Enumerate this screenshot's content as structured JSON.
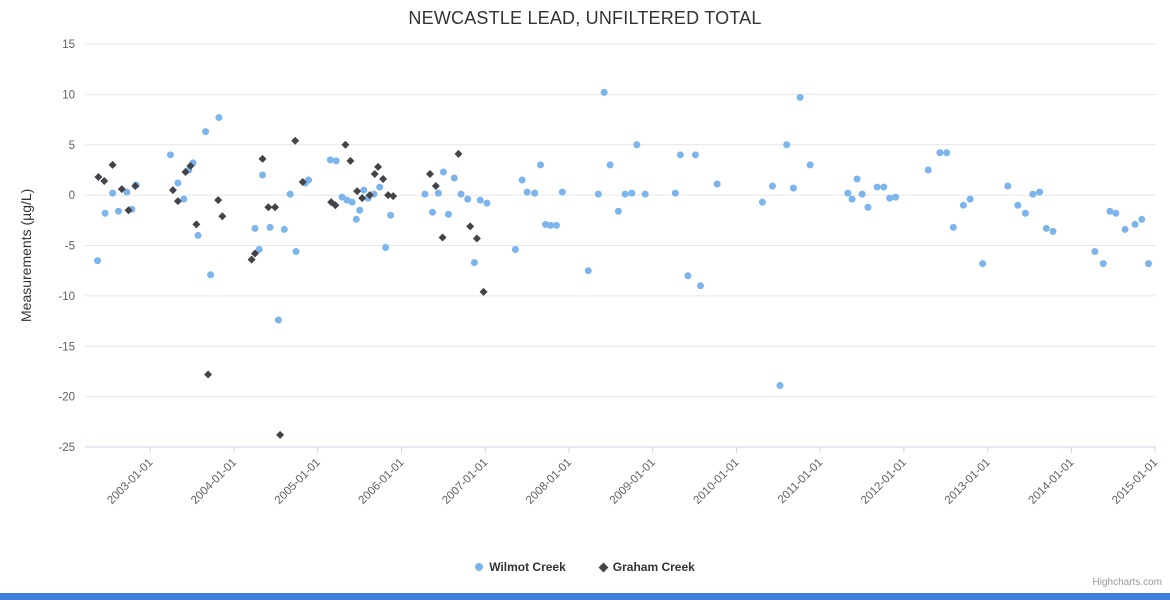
{
  "page": {
    "credits": "Highcharts.com"
  },
  "chart_data": {
    "type": "scatter",
    "title": "NEWCASTLE LEAD, UNFILTERED TOTAL",
    "xlabel": "",
    "ylabel": "Measurements (µg/L)",
    "xlim": [
      2002.22,
      2015.01
    ],
    "ylim": [
      -25,
      15
    ],
    "yticks": [
      15,
      10,
      5,
      0,
      -5,
      -10,
      -15,
      -20,
      -25
    ],
    "xticks": [
      {
        "v": 2003,
        "label": "2003-01-01"
      },
      {
        "v": 2004,
        "label": "2004-01-01"
      },
      {
        "v": 2005,
        "label": "2005-01-01"
      },
      {
        "v": 2006,
        "label": "2006-01-01"
      },
      {
        "v": 2007,
        "label": "2007-01-01"
      },
      {
        "v": 2008,
        "label": "2008-01-01"
      },
      {
        "v": 2009,
        "label": "2009-01-01"
      },
      {
        "v": 2010,
        "label": "2010-01-01"
      },
      {
        "v": 2011,
        "label": "2011-01-01"
      },
      {
        "v": 2012,
        "label": "2012-01-01"
      },
      {
        "v": 2013,
        "label": "2013-01-01"
      },
      {
        "v": 2014,
        "label": "2014-01-01"
      },
      {
        "v": 2015,
        "label": "2015-01-01"
      }
    ],
    "grid": "horizontal",
    "legend_position": "bottom-center",
    "series": [
      {
        "name": "Wilmot Creek",
        "marker": "circle",
        "color": "#7cb5ec",
        "data": [
          [
            2002.37,
            -6.5
          ],
          [
            2002.46,
            -1.8
          ],
          [
            2002.55,
            0.2
          ],
          [
            2002.62,
            -1.6
          ],
          [
            2002.72,
            0.3
          ],
          [
            2002.78,
            -1.4
          ],
          [
            2002.83,
            1.0
          ],
          [
            2003.24,
            4.0
          ],
          [
            2003.33,
            1.2
          ],
          [
            2003.4,
            -0.4
          ],
          [
            2003.46,
            2.5
          ],
          [
            2003.51,
            3.2
          ],
          [
            2003.57,
            -4.0
          ],
          [
            2003.66,
            6.3
          ],
          [
            2003.72,
            -7.9
          ],
          [
            2003.82,
            7.7
          ],
          [
            2004.25,
            -3.3
          ],
          [
            2004.3,
            -5.4
          ],
          [
            2004.34,
            2.0
          ],
          [
            2004.43,
            -3.2
          ],
          [
            2004.53,
            -12.4
          ],
          [
            2004.6,
            -3.4
          ],
          [
            2004.67,
            0.1
          ],
          [
            2004.74,
            -5.6
          ],
          [
            2004.85,
            1.2
          ],
          [
            2004.89,
            1.5
          ],
          [
            2005.15,
            3.5
          ],
          [
            2005.22,
            3.4
          ],
          [
            2005.29,
            -0.2
          ],
          [
            2005.35,
            -0.5
          ],
          [
            2005.41,
            -0.7
          ],
          [
            2005.46,
            -2.4
          ],
          [
            2005.5,
            -1.5
          ],
          [
            2005.55,
            0.5
          ],
          [
            2005.6,
            -0.3
          ],
          [
            2005.67,
            0.1
          ],
          [
            2005.74,
            0.8
          ],
          [
            2005.81,
            -5.2
          ],
          [
            2005.87,
            -2.0
          ],
          [
            2006.28,
            0.1
          ],
          [
            2006.37,
            -1.7
          ],
          [
            2006.44,
            0.2
          ],
          [
            2006.5,
            2.3
          ],
          [
            2006.56,
            -1.9
          ],
          [
            2006.63,
            1.7
          ],
          [
            2006.71,
            0.1
          ],
          [
            2006.79,
            -0.4
          ],
          [
            2006.87,
            -6.7
          ],
          [
            2006.94,
            -0.5
          ],
          [
            2007.02,
            -0.8
          ],
          [
            2007.36,
            -5.4
          ],
          [
            2007.44,
            1.5
          ],
          [
            2007.5,
            0.3
          ],
          [
            2007.59,
            0.2
          ],
          [
            2007.66,
            3.0
          ],
          [
            2007.72,
            -2.9
          ],
          [
            2007.78,
            -3.0
          ],
          [
            2007.85,
            -3.0
          ],
          [
            2007.92,
            0.3
          ],
          [
            2008.23,
            -7.5
          ],
          [
            2008.35,
            0.1
          ],
          [
            2008.42,
            10.2
          ],
          [
            2008.49,
            3.0
          ],
          [
            2008.59,
            -1.6
          ],
          [
            2008.67,
            0.1
          ],
          [
            2008.75,
            0.2
          ],
          [
            2008.81,
            5.0
          ],
          [
            2008.91,
            0.1
          ],
          [
            2009.27,
            0.2
          ],
          [
            2009.33,
            4.0
          ],
          [
            2009.42,
            -8.0
          ],
          [
            2009.51,
            4.0
          ],
          [
            2009.57,
            -9.0
          ],
          [
            2009.77,
            1.1
          ],
          [
            2010.31,
            -0.7
          ],
          [
            2010.43,
            0.9
          ],
          [
            2010.52,
            -18.9
          ],
          [
            2010.6,
            5.0
          ],
          [
            2010.68,
            0.7
          ],
          [
            2010.76,
            9.7
          ],
          [
            2010.88,
            3.0
          ],
          [
            2011.33,
            0.2
          ],
          [
            2011.38,
            -0.4
          ],
          [
            2011.44,
            1.6
          ],
          [
            2011.5,
            0.1
          ],
          [
            2011.57,
            -1.2
          ],
          [
            2011.68,
            0.8
          ],
          [
            2011.76,
            0.8
          ],
          [
            2011.83,
            -0.3
          ],
          [
            2011.9,
            -0.2
          ],
          [
            2012.29,
            2.5
          ],
          [
            2012.43,
            4.2
          ],
          [
            2012.51,
            4.2
          ],
          [
            2012.59,
            -3.2
          ],
          [
            2012.71,
            -1.0
          ],
          [
            2012.79,
            -0.4
          ],
          [
            2012.94,
            -6.8
          ],
          [
            2013.24,
            0.9
          ],
          [
            2013.36,
            -1.0
          ],
          [
            2013.45,
            -1.8
          ],
          [
            2013.54,
            0.1
          ],
          [
            2013.62,
            0.3
          ],
          [
            2013.7,
            -3.3
          ],
          [
            2013.78,
            -3.6
          ],
          [
            2014.28,
            -5.6
          ],
          [
            2014.38,
            -6.8
          ],
          [
            2014.46,
            -1.6
          ],
          [
            2014.53,
            -1.8
          ],
          [
            2014.64,
            -3.4
          ],
          [
            2014.76,
            -2.9
          ],
          [
            2014.84,
            -2.4
          ],
          [
            2014.92,
            -6.8
          ]
        ]
      },
      {
        "name": "Graham Creek",
        "marker": "diamond",
        "color": "#434348",
        "data": [
          [
            2002.38,
            1.8
          ],
          [
            2002.45,
            1.4
          ],
          [
            2002.55,
            3.0
          ],
          [
            2002.66,
            0.6
          ],
          [
            2002.74,
            -1.5
          ],
          [
            2002.82,
            0.9
          ],
          [
            2003.27,
            0.5
          ],
          [
            2003.33,
            -0.6
          ],
          [
            2003.42,
            2.3
          ],
          [
            2003.48,
            2.9
          ],
          [
            2003.55,
            -2.9
          ],
          [
            2003.69,
            -17.8
          ],
          [
            2003.81,
            -0.5
          ],
          [
            2003.86,
            -2.1
          ],
          [
            2004.21,
            -6.4
          ],
          [
            2004.25,
            -5.8
          ],
          [
            2004.34,
            3.6
          ],
          [
            2004.41,
            -1.2
          ],
          [
            2004.49,
            -1.2
          ],
          [
            2004.55,
            -23.8
          ],
          [
            2004.73,
            5.4
          ],
          [
            2004.82,
            1.3
          ],
          [
            2005.16,
            -0.7
          ],
          [
            2005.21,
            -1.0
          ],
          [
            2005.33,
            5.0
          ],
          [
            2005.39,
            3.4
          ],
          [
            2005.47,
            0.4
          ],
          [
            2005.53,
            -0.3
          ],
          [
            2005.62,
            0.0
          ],
          [
            2005.68,
            2.1
          ],
          [
            2005.72,
            2.8
          ],
          [
            2005.78,
            1.6
          ],
          [
            2005.84,
            0.0
          ],
          [
            2005.9,
            -0.1
          ],
          [
            2006.34,
            2.1
          ],
          [
            2006.41,
            0.9
          ],
          [
            2006.49,
            -4.2
          ],
          [
            2006.68,
            4.1
          ],
          [
            2006.82,
            -3.1
          ],
          [
            2006.9,
            -4.3
          ],
          [
            2006.98,
            -9.6
          ]
        ]
      }
    ]
  }
}
